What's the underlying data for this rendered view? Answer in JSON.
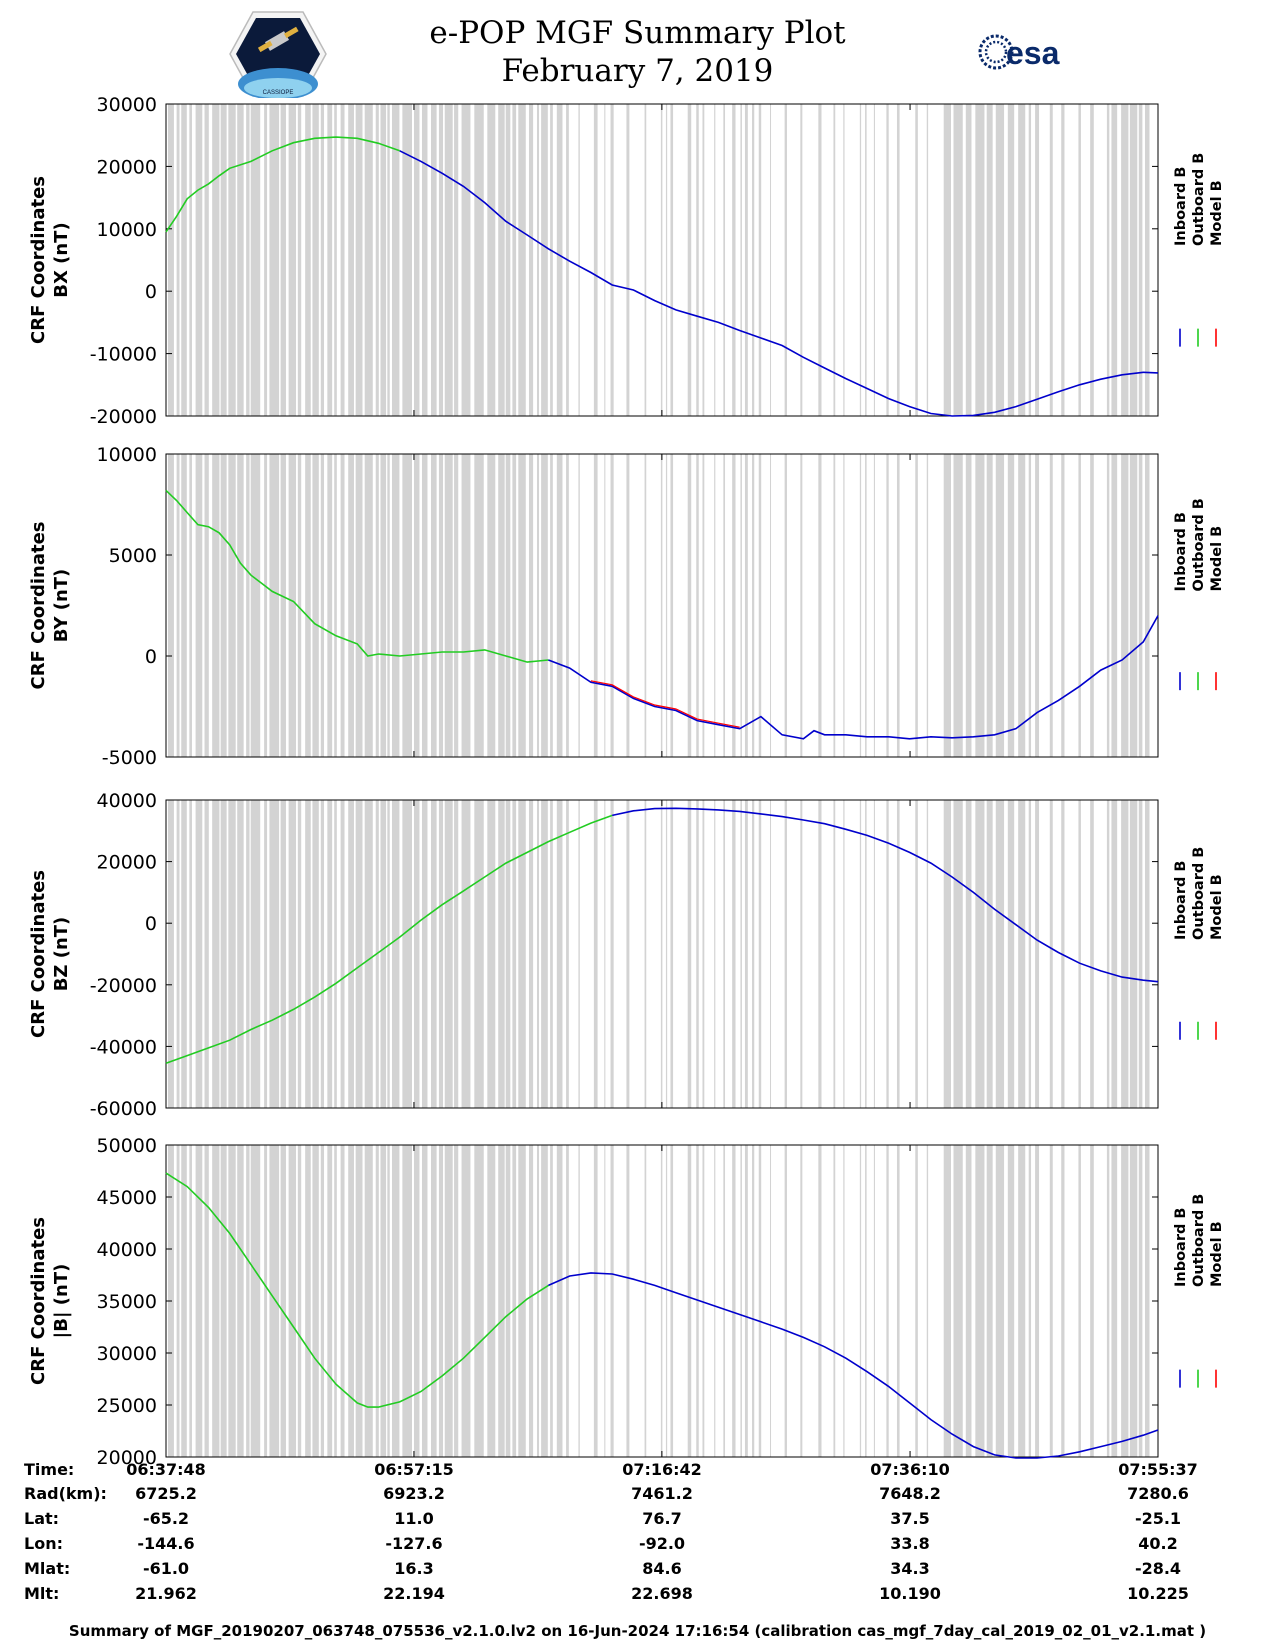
{
  "header": {
    "title_line1": "e-POP MGF Summary Plot",
    "title_line2": "February 7, 2019",
    "logo_left": "CASSIOPE",
    "logo_right": "esa"
  },
  "colors": {
    "inboard": "#0000cc",
    "outboard": "#22cc22",
    "model": "#ff0000",
    "gap_band": "#d3d3d3"
  },
  "chart_data": [
    {
      "type": "line",
      "name": "bx",
      "ylabel": [
        "CRF Coordinates",
        "BX (nT)"
      ],
      "ylim": [
        -20000,
        30000
      ],
      "yticks": [
        30000,
        20000,
        10000,
        0,
        -10000,
        -20000
      ],
      "xlim": [
        0,
        4669
      ],
      "outboard_end": 1050,
      "legend": [
        "Inboard B",
        "Outboard B",
        "Model B"
      ],
      "x": [
        0,
        50,
        100,
        150,
        200,
        250,
        300,
        400,
        500,
        600,
        700,
        800,
        900,
        1000,
        1100,
        1200,
        1300,
        1400,
        1500,
        1600,
        1700,
        1800,
        1900,
        2000,
        2100,
        2200,
        2300,
        2400,
        2500,
        2600,
        2700,
        2800,
        2900,
        3000,
        3100,
        3200,
        3300,
        3400,
        3500,
        3600,
        3700,
        3800,
        3900,
        4000,
        4100,
        4200,
        4300,
        4400,
        4500,
        4600,
        4669
      ],
      "values": [
        9500,
        12000,
        14800,
        16200,
        17200,
        18500,
        19700,
        20800,
        22500,
        23800,
        24500,
        24700,
        24500,
        23700,
        22500,
        20800,
        18900,
        16800,
        14200,
        11200,
        9000,
        6800,
        4800,
        3000,
        1000,
        200,
        -1500,
        -3000,
        -4000,
        -5000,
        -6300,
        -7500,
        -8700,
        -10600,
        -12300,
        -14000,
        -15600,
        -17200,
        -18500,
        -19600,
        -20000,
        -19900,
        -19400,
        -18500,
        -17300,
        -16100,
        -15000,
        -14100,
        -13400,
        -13000,
        -13100
      ]
    },
    {
      "type": "line",
      "name": "by",
      "ylabel": [
        "CRF Coordinates",
        "BY (nT)"
      ],
      "ylim": [
        -5000,
        10000
      ],
      "yticks": [
        10000,
        5000,
        0,
        -5000
      ],
      "xlim": [
        0,
        4669
      ],
      "outboard_end": 1800,
      "model_segment": [
        2000,
        2750
      ],
      "legend": [
        "Inboard B",
        "Outboard B",
        "Model B"
      ],
      "x": [
        0,
        50,
        100,
        150,
        200,
        250,
        300,
        350,
        400,
        450,
        500,
        600,
        700,
        800,
        900,
        950,
        1000,
        1100,
        1200,
        1300,
        1400,
        1500,
        1600,
        1700,
        1800,
        1900,
        2000,
        2100,
        2200,
        2300,
        2400,
        2500,
        2600,
        2700,
        2800,
        2900,
        3000,
        3050,
        3100,
        3200,
        3300,
        3400,
        3500,
        3600,
        3700,
        3800,
        3900,
        4000,
        4100,
        4200,
        4300,
        4400,
        4500,
        4600,
        4669
      ],
      "values": [
        8200,
        7700,
        7100,
        6500,
        6400,
        6100,
        5500,
        4600,
        4000,
        3600,
        3200,
        2700,
        1600,
        1000,
        600,
        0,
        100,
        0,
        100,
        200,
        200,
        300,
        0,
        -300,
        -200,
        -600,
        -1300,
        -1500,
        -2100,
        -2500,
        -2700,
        -3200,
        -3400,
        -3600,
        -3000,
        -3900,
        -4100,
        -3700,
        -3900,
        -3900,
        -4000,
        -4000,
        -4100,
        -4000,
        -4050,
        -4000,
        -3900,
        -3600,
        -2800,
        -2200,
        -1500,
        -700,
        -200,
        700,
        2000
      ]
    },
    {
      "type": "line",
      "name": "bz",
      "ylabel": [
        "CRF Coordinates",
        "BZ (nT)"
      ],
      "ylim": [
        -60000,
        40000
      ],
      "yticks": [
        40000,
        20000,
        0,
        -20000,
        -40000,
        -60000
      ],
      "xlim": [
        0,
        4669
      ],
      "outboard_end": 2050,
      "legend": [
        "Inboard B",
        "Outboard B",
        "Model B"
      ],
      "x": [
        0,
        100,
        200,
        300,
        400,
        500,
        600,
        700,
        800,
        900,
        1000,
        1100,
        1200,
        1300,
        1400,
        1500,
        1600,
        1700,
        1800,
        1900,
        2000,
        2100,
        2200,
        2300,
        2400,
        2500,
        2600,
        2700,
        2800,
        2900,
        3000,
        3100,
        3200,
        3300,
        3400,
        3500,
        3600,
        3700,
        3800,
        3900,
        4000,
        4100,
        4200,
        4300,
        4400,
        4500,
        4600,
        4669
      ],
      "values": [
        -45500,
        -43000,
        -40500,
        -38000,
        -34500,
        -31500,
        -28000,
        -24000,
        -19500,
        -14500,
        -9500,
        -4500,
        1000,
        6000,
        10500,
        15000,
        19500,
        23000,
        26500,
        29500,
        32500,
        35000,
        36500,
        37200,
        37300,
        37100,
        36800,
        36300,
        35500,
        34600,
        33500,
        32300,
        30500,
        28500,
        26000,
        23000,
        19500,
        15000,
        10000,
        4500,
        -500,
        -5500,
        -9500,
        -13000,
        -15500,
        -17500,
        -18500,
        -19000
      ]
    },
    {
      "type": "line",
      "name": "b_mag",
      "ylabel": [
        "CRF Coordinates",
        "|B| (nT)"
      ],
      "ylim": [
        20000,
        50000
      ],
      "yticks": [
        50000,
        45000,
        40000,
        35000,
        30000,
        25000,
        20000
      ],
      "xlim": [
        0,
        4669
      ],
      "outboard_end": 1750,
      "legend": [
        "Inboard B",
        "Outboard B",
        "Model B"
      ],
      "x": [
        0,
        100,
        200,
        300,
        400,
        500,
        600,
        700,
        800,
        900,
        950,
        1000,
        1100,
        1200,
        1300,
        1400,
        1500,
        1600,
        1700,
        1800,
        1900,
        2000,
        2100,
        2200,
        2300,
        2400,
        2500,
        2600,
        2700,
        2800,
        2900,
        3000,
        3100,
        3200,
        3300,
        3400,
        3500,
        3600,
        3700,
        3800,
        3900,
        4000,
        4100,
        4200,
        4300,
        4400,
        4500,
        4600,
        4669
      ],
      "values": [
        47300,
        46000,
        44000,
        41500,
        38500,
        35500,
        32500,
        29500,
        27000,
        25200,
        24800,
        24800,
        25300,
        26300,
        27800,
        29500,
        31500,
        33500,
        35200,
        36500,
        37400,
        37700,
        37600,
        37100,
        36500,
        35800,
        35100,
        34400,
        33700,
        33000,
        32300,
        31500,
        30600,
        29500,
        28200,
        26800,
        25200,
        23600,
        22200,
        21000,
        20200,
        19900,
        19900,
        20100,
        20500,
        21000,
        21500,
        22100,
        22600
      ]
    }
  ],
  "x_axis": {
    "time_ticks": [
      0,
      1167,
      2334,
      3502,
      4669
    ]
  },
  "info_table": {
    "labels": [
      "Time:",
      "Rad(km):",
      "Lat:",
      "Lon:",
      "Mlat:",
      "Mlt:"
    ],
    "columns": [
      [
        "06:37:48",
        "6725.2",
        "-65.2",
        "-144.6",
        "-61.0",
        "21.962"
      ],
      [
        "06:57:15",
        "6923.2",
        "11.0",
        "-127.6",
        "16.3",
        "22.194"
      ],
      [
        "07:16:42",
        "7461.2",
        "76.7",
        "-92.0",
        "84.6",
        "22.698"
      ],
      [
        "07:36:10",
        "7648.2",
        "37.5",
        "33.8",
        "34.3",
        "10.190"
      ],
      [
        "07:55:37",
        "7280.6",
        "-25.1",
        "40.2",
        "-28.4",
        "10.225"
      ]
    ]
  },
  "footer": "Summary of MGF_20190207_063748_075536_v2.1.0.lv2 on 16-Jun-2024 17:16:54 (calibration cas_mgf_7day_cal_2019_02_01_v2.1.mat )"
}
